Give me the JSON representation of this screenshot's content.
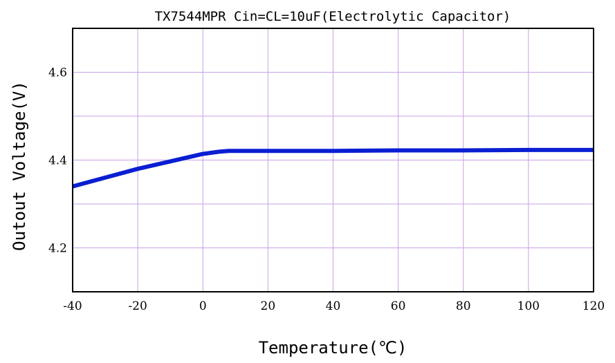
{
  "chart_data": {
    "type": "line",
    "title": "TX7544MPR Cin=CL=10uF(Electrolytic Capacitor)",
    "xlabel": "Temperature(℃)",
    "ylabel": "Outout Voltage(V)",
    "xlim": [
      -40,
      120
    ],
    "ylim": [
      4.1,
      4.7
    ],
    "x_ticks": [
      -40,
      -20,
      0,
      20,
      40,
      60,
      80,
      100,
      120
    ],
    "x_tick_labels": [
      "-40",
      "-20",
      "0",
      "20",
      "40",
      "60",
      "80",
      "100",
      "120"
    ],
    "y_gridlines": [
      4.2,
      4.3,
      4.4,
      4.5,
      4.6
    ],
    "y_tick_values": [
      4.2,
      4.4,
      4.6
    ],
    "y_tick_labels": [
      "4.2",
      "4.4",
      "4.6"
    ],
    "grid": true,
    "series": [
      {
        "x": [
          -40,
          -30,
          -20,
          -10,
          0,
          5,
          8,
          20,
          40,
          60,
          80,
          100,
          120
        ],
        "y": [
          4.34,
          4.36,
          4.38,
          4.397,
          4.414,
          4.419,
          4.421,
          4.421,
          4.421,
          4.422,
          4.422,
          4.423,
          4.423
        ]
      }
    ],
    "colors": {
      "line": "#0a1ed2",
      "grid": "#c8a0e6",
      "frame": "#000000"
    }
  }
}
